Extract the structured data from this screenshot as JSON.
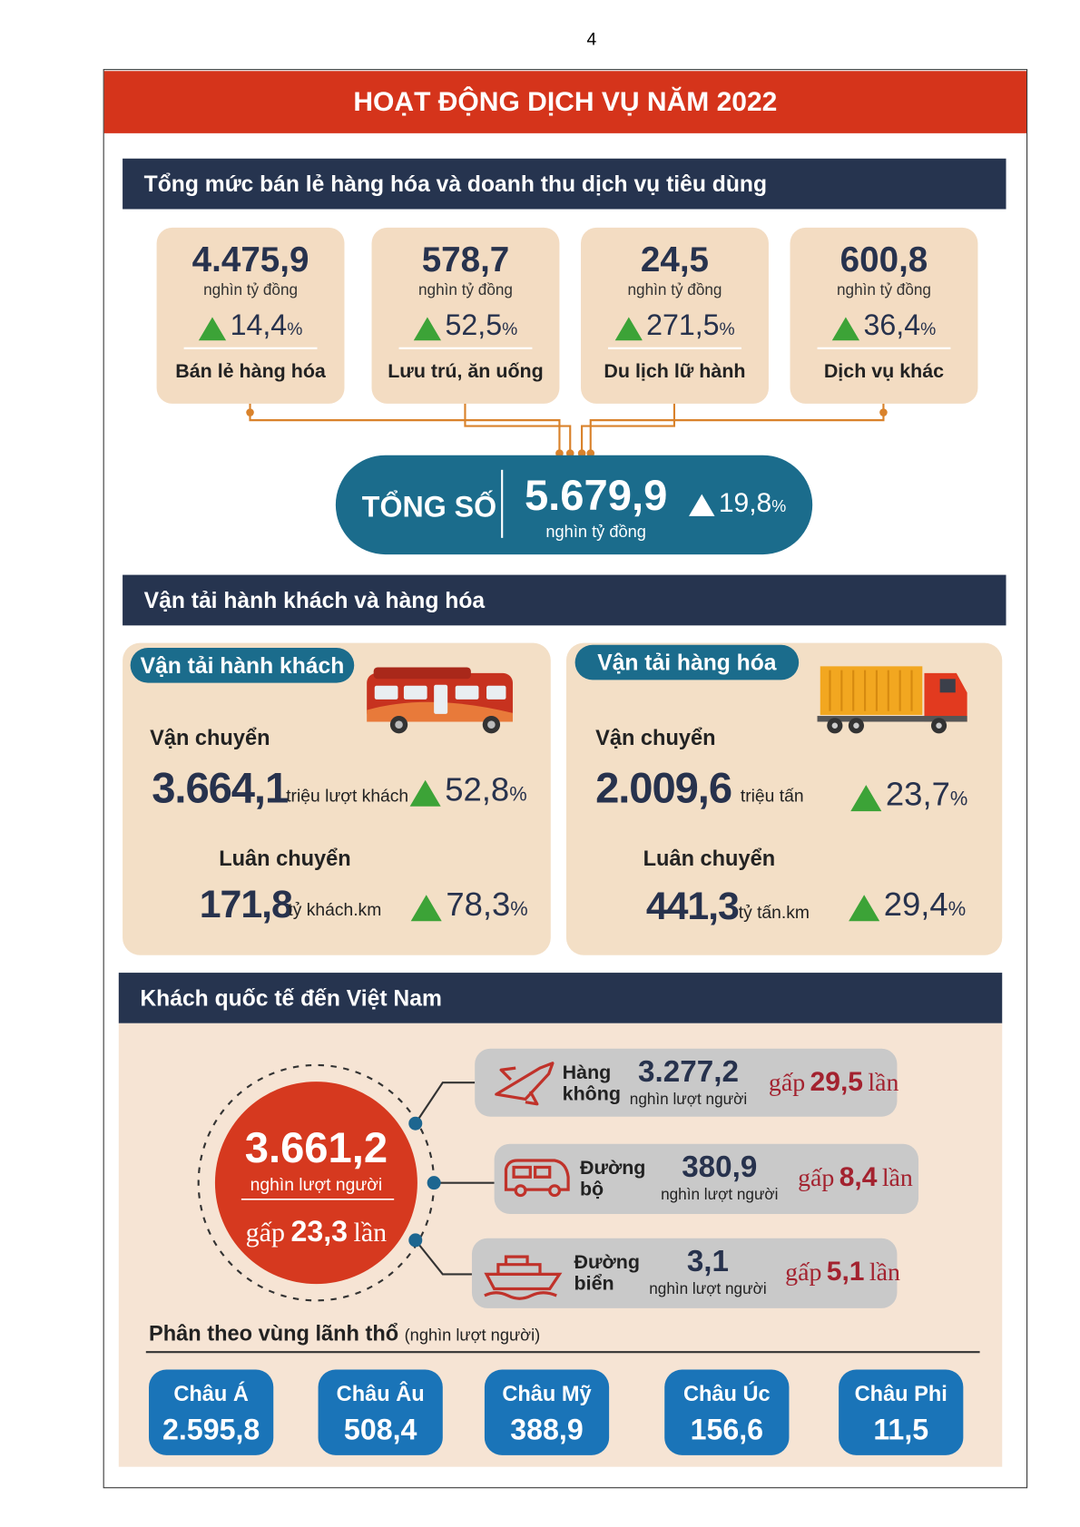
{
  "page_number": "4",
  "header": {
    "title": "HOẠT ĐỘNG DỊCH VỤ NĂM 2022"
  },
  "retail": {
    "title": "Tổng mức bán lẻ hàng hóa và doanh thu dịch vụ tiêu dùng",
    "items": [
      {
        "value": "4.475,9",
        "unit": "nghìn tỷ đồng",
        "growth": "14,4",
        "growth_unit": "%",
        "label": "Bán lẻ hàng hóa"
      },
      {
        "value": "578,7",
        "unit": "nghìn tỷ đồng",
        "growth": "52,5",
        "growth_unit": "%",
        "label": "Lưu trú, ăn uống"
      },
      {
        "value": "24,5",
        "unit": "nghìn tỷ đồng",
        "growth": "271,5",
        "growth_unit": "%",
        "label": "Du lịch lữ hành"
      },
      {
        "value": "600,8",
        "unit": "nghìn tỷ đồng",
        "growth": "36,4",
        "growth_unit": "%",
        "label": "Dịch vụ khác"
      }
    ],
    "total": {
      "label": "TỔNG SỐ",
      "value": "5.679,9",
      "unit": "nghìn tỷ đồng",
      "growth": "19,8",
      "growth_unit": "%"
    }
  },
  "transport": {
    "title": "Vận tải hành khách và hàng hóa",
    "panels": [
      {
        "title": "Vận tải hành khách",
        "rows": [
          {
            "label": "Vận chuyển",
            "value": "3.664,1",
            "unit": "triệu lượt khách",
            "growth": "52,8",
            "growth_unit": "%"
          },
          {
            "label": "Luân chuyển",
            "value": "171,8",
            "unit": "tỷ khách.km",
            "growth": "78,3",
            "growth_unit": "%"
          }
        ]
      },
      {
        "title": "Vận tải hàng hóa",
        "rows": [
          {
            "label": "Vận chuyển",
            "value": "2.009,6",
            "unit": "triệu tấn",
            "growth": "23,7",
            "growth_unit": "%"
          },
          {
            "label": "Luân chuyển",
            "value": "441,3",
            "unit": "tỷ tấn.km",
            "growth": "29,4",
            "growth_unit": "%"
          }
        ]
      }
    ]
  },
  "visitors": {
    "title": "Khách quốc tế đến Việt Nam",
    "total": {
      "value": "3.661,2",
      "unit": "nghìn lượt người",
      "prefix": "gấp",
      "times": "23,3",
      "suffix": "lần"
    },
    "modes": [
      {
        "label": "Hàng không",
        "value": "3.277,2",
        "unit": "nghìn lượt người",
        "prefix": "gấp",
        "times": "29,5",
        "suffix": "lần"
      },
      {
        "label": "Đường bộ",
        "value": "380,9",
        "unit": "nghìn lượt người",
        "prefix": "gấp",
        "times": "8,4",
        "suffix": "lần"
      },
      {
        "label": "Đường biển",
        "value": "3,1",
        "unit": "nghìn lượt người",
        "prefix": "gấp",
        "times": "5,1",
        "suffix": "lần"
      }
    ],
    "regions_title": "Phân theo vùng lãnh thổ",
    "regions_unit": "(nghìn lượt người)",
    "regions": [
      {
        "name": "Châu Á",
        "value": "2.595,8"
      },
      {
        "name": "Châu Âu",
        "value": "508,4"
      },
      {
        "name": "Châu Mỹ",
        "value": "388,9"
      },
      {
        "name": "Châu Úc",
        "value": "156,6"
      },
      {
        "name": "Châu Phi",
        "value": "11,5"
      }
    ]
  }
}
